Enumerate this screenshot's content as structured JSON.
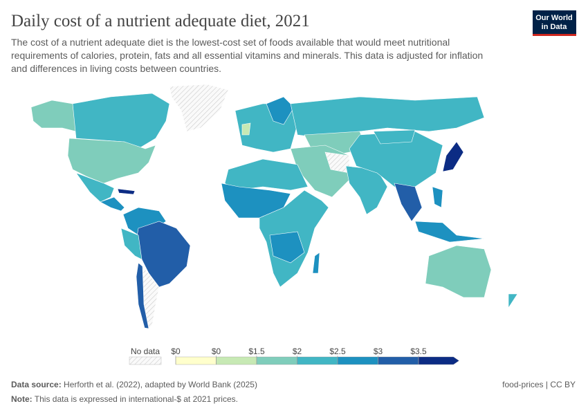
{
  "header": {
    "title": "Daily cost of a nutrient adequate diet, 2021",
    "subtitle_lines": [
      "The cost of a nutrient adequate diet is the lowest-cost set of foods available that would meet nutritional",
      "requirements of calories, protein, fats and all essential vitamins and minerals. This data is adjusted for inflation",
      "and differences in living costs between countries."
    ],
    "logo_lines": [
      "Our World",
      "in Data"
    ]
  },
  "legend": {
    "no_data": "No data",
    "ticks": [
      "$0",
      "$0",
      "$1.5",
      "$2",
      "$2.5",
      "$3",
      "$3.5"
    ],
    "colors": [
      "#ffffcc",
      "#c7e9b4",
      "#7fcdbb",
      "#41b6c4",
      "#1d91c0",
      "#225ea8",
      "#0c2c84"
    ]
  },
  "footer": {
    "source_label": "Data source:",
    "source": "Herforth et al. (2022), adapted by World Bank (2025)",
    "license": "food-prices | CC BY",
    "note_label": "Note:",
    "note": "This data is expressed in international-$ at 2021 prices."
  }
}
